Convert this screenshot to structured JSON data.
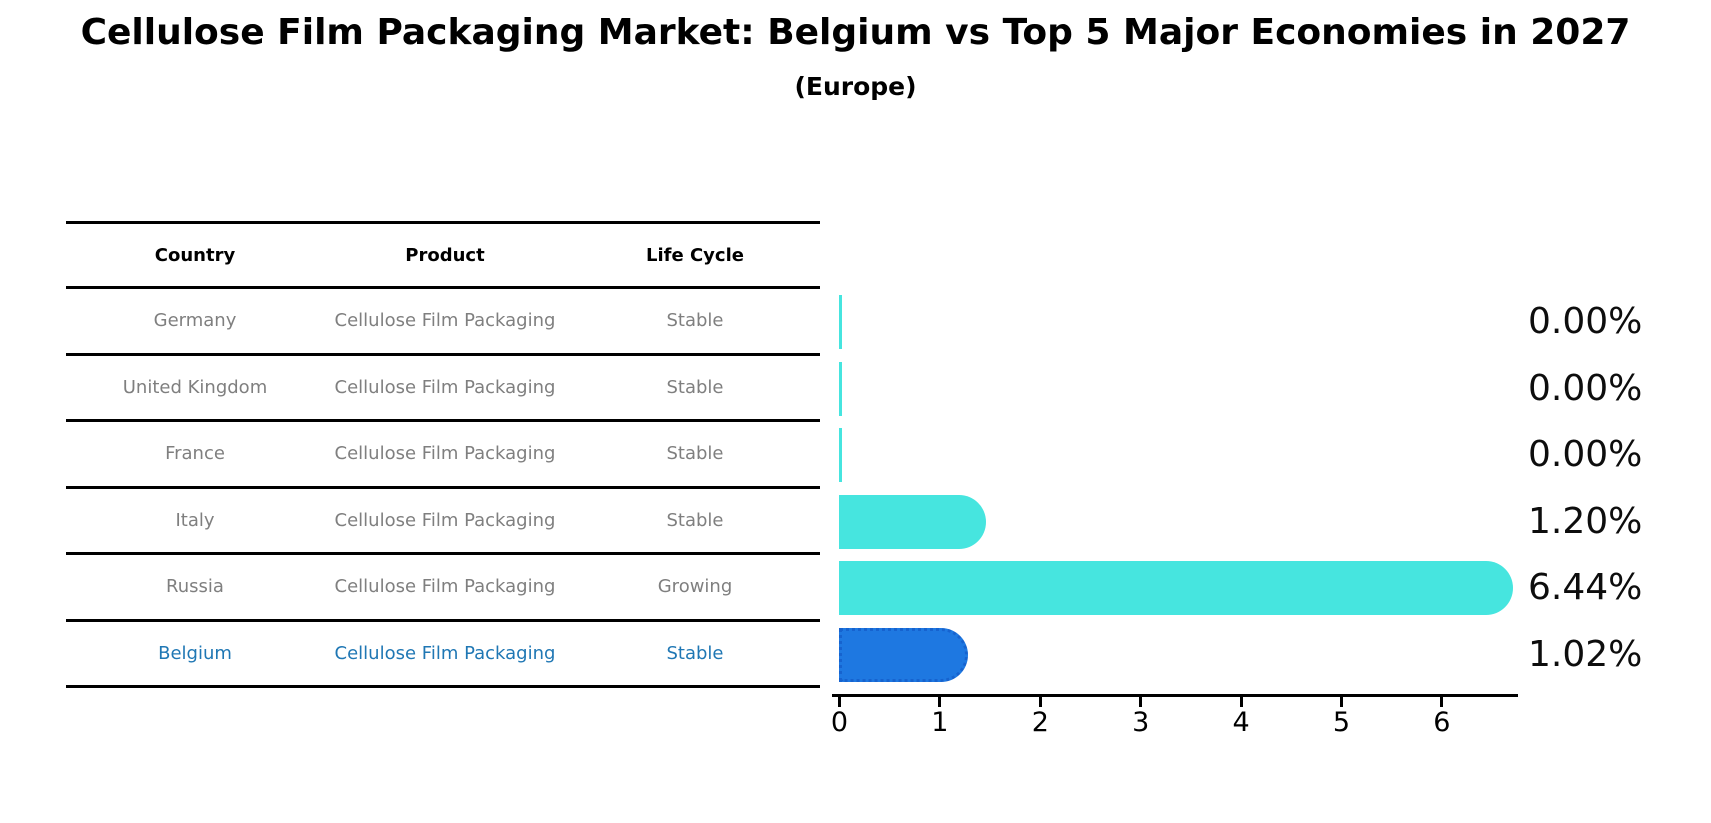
{
  "title": "Cellulose Film Packaging Market: Belgium vs Top 5 Major Economies in 2027",
  "subtitle": "(Europe)",
  "table": {
    "headers": [
      "Country",
      "Product",
      "Life Cycle"
    ],
    "rows": [
      {
        "country": "Germany",
        "product": "Cellulose Film Packaging",
        "life_cycle": "Stable",
        "highlight": false
      },
      {
        "country": "United Kingdom",
        "product": "Cellulose Film Packaging",
        "life_cycle": "Stable",
        "highlight": false
      },
      {
        "country": "France",
        "product": "Cellulose Film Packaging",
        "life_cycle": "Stable",
        "highlight": false
      },
      {
        "country": "Italy",
        "product": "Cellulose Film Packaging",
        "life_cycle": "Stable",
        "highlight": false
      },
      {
        "country": "Russia",
        "product": "Cellulose Film Packaging",
        "life_cycle": "Growing",
        "highlight": false
      },
      {
        "country": "Belgium",
        "product": "Cellulose Film Packaging",
        "life_cycle": "Stable",
        "highlight": true
      }
    ]
  },
  "chart_data": {
    "type": "bar",
    "orientation": "horizontal",
    "title": "Cellulose Film Packaging Market: Belgium vs Top 5 Major Economies in 2027 (Europe)",
    "categories": [
      "Germany",
      "United Kingdom",
      "France",
      "Italy",
      "Russia",
      "Belgium"
    ],
    "values": [
      0.0,
      0.0,
      0.0,
      1.2,
      6.44,
      1.02
    ],
    "bar_labels": [
      "0.00%",
      "0.00%",
      "0.00%",
      "1.20%",
      "6.44%",
      "1.02%"
    ],
    "highlight_index": 5,
    "x_ticks": [
      0,
      1,
      2,
      3,
      4,
      5,
      6
    ],
    "xlim": [
      0,
      6.8
    ],
    "grid": false,
    "legend": "none"
  },
  "colors": {
    "default_bar": "#46E5DF",
    "highlight_bar": "#1E78E1",
    "highlight_bar_border": "#1663cf",
    "highlight_text": "#1f77b4",
    "table_text": "#7f7f7f",
    "header_text": "#000000",
    "axis": "#000000",
    "background": "#ffffff"
  }
}
